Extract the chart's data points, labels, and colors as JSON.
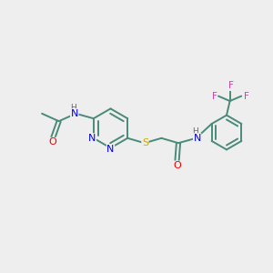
{
  "bg_color": "#eeeeee",
  "bond_color": "#4a8a78",
  "N_color": "#0000ee",
  "O_color": "#ee0000",
  "S_color": "#ccaa00",
  "F_color": "#cc44aa",
  "H_color": "#666666",
  "line_width": 1.4,
  "fig_width": 3.0,
  "fig_height": 3.0,
  "dpi": 100,
  "xlim": [
    0,
    10
  ],
  "ylim": [
    0,
    10
  ]
}
